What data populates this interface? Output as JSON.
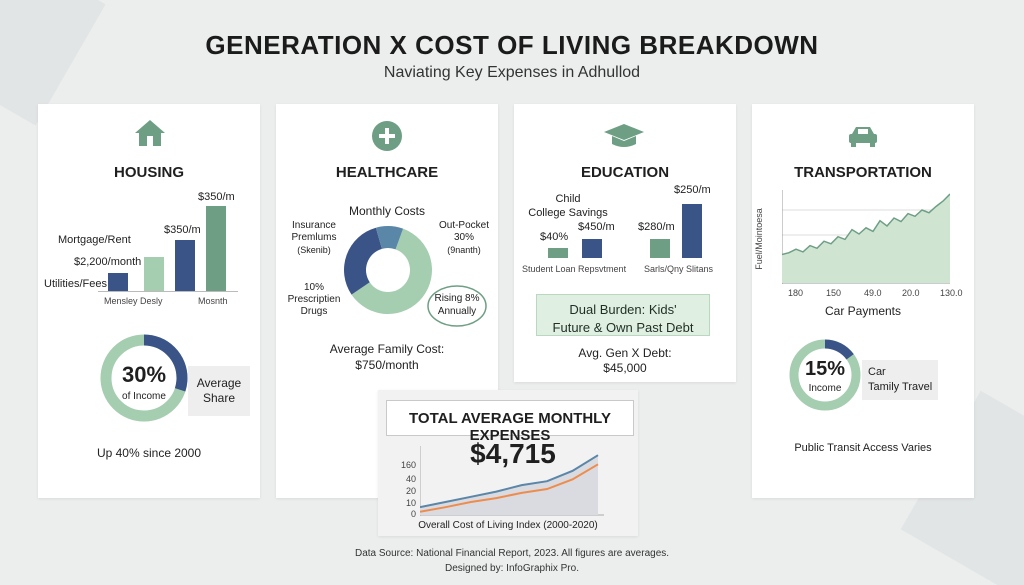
{
  "header": {
    "title": "GENERATION X COST OF LIVING BREAKDOWN",
    "subtitle": "Naviating Key Expenses in Adhullod"
  },
  "colors": {
    "navy": "#3b5488",
    "green": "#6e9f84",
    "light_green": "#a5cdb0",
    "line_orange": "#ee8c4e",
    "line_blue": "#5a86a8"
  },
  "housing": {
    "icon": "house-icon",
    "title": "HOUSING",
    "label_mortgage": "Mortgage/Rent",
    "label_2200": "$2,200/month",
    "label_utilities": "Utilities/Fees",
    "label_350a": "$350/m",
    "label_350b": "$350/m",
    "x_left": "Mensley Desly",
    "x_right": "Mosnth",
    "donut_value": "30%",
    "donut_caption": "of Income",
    "donut_share": 0.3,
    "share_label_1": "Average",
    "share_label_2": "Share",
    "footer": "Up 40% since 2000"
  },
  "healthcare": {
    "icon": "plus-icon",
    "title": "HEALTHCARE",
    "monthly_costs": "Monthly Costs",
    "insurance_1": "Insurance",
    "insurance_2": "Premlums",
    "insurance_3": "(Skenib)",
    "outpocket_1": "Out-Pocket",
    "outpocket_2": "30%",
    "outpocket_3": "(9nanth)",
    "rx_1": "10%",
    "rx_2": "Prescriptien",
    "rx_3": "Drugs",
    "rising_1": "Rising 8%",
    "rising_2": "Annually",
    "avg_1": "Average Family Cost:",
    "avg_2": "$750/month"
  },
  "education": {
    "icon": "graduation-cap-icon",
    "title": "EDUCATION",
    "child_1": "Child",
    "child_2": "College Savings",
    "label_40": "$40%",
    "label_450": "$450/m",
    "label_280": "$280/m",
    "label_250": "$250/m",
    "x_left": "Student Loan Repsvtment",
    "x_right": "Sarls/Qny Slitans",
    "dual_1": "Dual Burden: Kids'",
    "dual_2": "Future & Own Past Debt",
    "debt_1": "Avg. Gen X Debt:",
    "debt_2": "$45,000"
  },
  "transportation": {
    "icon": "car-icon",
    "title": "TRANSPORTATION",
    "y_label": "Fuel/Mointoesa",
    "x_ticks": [
      "180",
      "150",
      "49.0",
      "20.0",
      "130.0"
    ],
    "x_caption": "Car Payments",
    "donut_value": "15%",
    "donut_caption": "Income",
    "donut_share": 0.15,
    "legend_1": "Car",
    "legend_2": "Tamily Travel",
    "footer": "Public Transit Access Varies"
  },
  "total": {
    "box_label": "TOTAL AVERAGE MONTHLY EXPENSES",
    "amount": "$4,715",
    "y_ticks": [
      "160",
      "40",
      "20",
      "10",
      "0"
    ],
    "caption": "Overall Cost of Living Index (2000-2020)"
  },
  "footer": {
    "source": "Data Source: National Financial Report, 2023. All figures are averages.",
    "designer": "Designed by: InfoGraphix Pro."
  },
  "chart_data": [
    {
      "type": "bar",
      "chart": "housing",
      "categories": [
        "Utilities/Fees",
        "Mortgage/Rent",
        "$350/m",
        "$350/m"
      ],
      "values": [
        0.16,
        0.31,
        0.46,
        0.77
      ],
      "colors": [
        "#3b5488",
        "#a5cdb0",
        "#3b5488",
        "#6e9f84"
      ]
    },
    {
      "type": "pie",
      "chart": "healthcare",
      "labels": [
        "Insurance Premlums",
        "Out-Pocket",
        "Prescriptien Drugs"
      ],
      "values": [
        60,
        30,
        10
      ],
      "colors": [
        "#a5cdb0",
        "#3b5488",
        "#5a86a8"
      ]
    },
    {
      "type": "bar",
      "chart": "education",
      "categories": [
        "$40%",
        "$450/m",
        "$280/m",
        "$250/m"
      ],
      "values": [
        0.19,
        0.36,
        0.36,
        1.0
      ],
      "colors": [
        "#6e9f84",
        "#3b5488",
        "#6e9f84",
        "#3b5488"
      ]
    },
    {
      "type": "area",
      "chart": "transportation",
      "values": [
        0.32,
        0.34,
        0.38,
        0.35,
        0.42,
        0.39,
        0.47,
        0.44,
        0.52,
        0.49,
        0.6,
        0.55,
        0.62,
        0.58,
        0.7,
        0.64,
        0.73,
        0.69,
        0.78,
        0.75,
        0.82,
        0.79,
        0.86,
        0.92,
        1.0
      ]
    },
    {
      "type": "line",
      "chart": "total",
      "series": [
        {
          "values": [
            0.12,
            0.2,
            0.28,
            0.36,
            0.46,
            0.52,
            0.68,
            0.92
          ]
        },
        {
          "values": [
            0.05,
            0.12,
            0.2,
            0.26,
            0.34,
            0.4,
            0.55,
            0.78
          ]
        }
      ]
    }
  ]
}
